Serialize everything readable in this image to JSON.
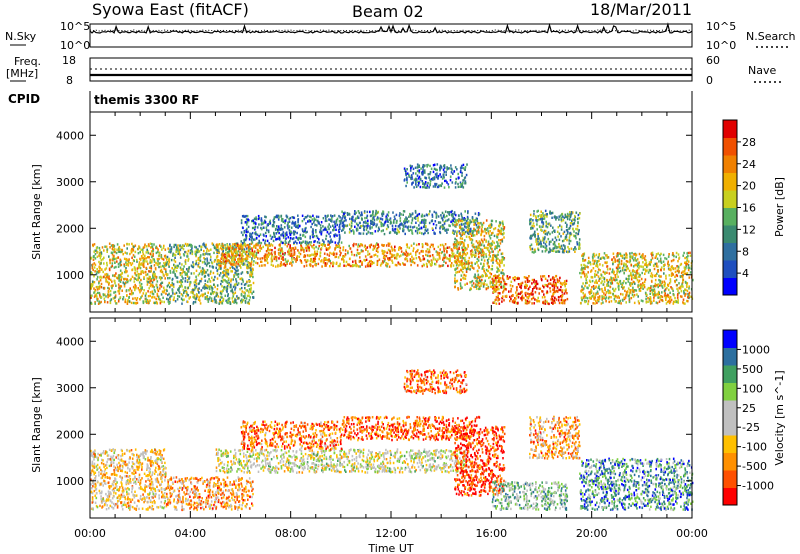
{
  "header": {
    "station": "Syowa East (fitACF)",
    "beam": "Beam 02",
    "date": "18/Mar/2011"
  },
  "noise_panel": {
    "left_label": "N.Sky",
    "right_label": "N.Search",
    "tick_top": "10^5",
    "tick_bottom": "10^0"
  },
  "freq_panel": {
    "left_label_line1": "Freq.",
    "left_label_line2": "[MHz]",
    "right_label": "Nave",
    "left_tick_top": "18",
    "left_tick_bottom": "8",
    "right_tick_top": "60",
    "right_tick_bottom": "0"
  },
  "cpid_panel": {
    "label": "CPID",
    "program": "themis 3300 RF"
  },
  "colors": {
    "power": [
      "#0000ff",
      "#1f4fbf",
      "#2f6fa0",
      "#3a8a70",
      "#58b060",
      "#c8d020",
      "#f0b000",
      "#f08000",
      "#f05000",
      "#e00000"
    ],
    "velocity": [
      "#ff0000",
      "#ff5000",
      "#ff9000",
      "#ffc000",
      "#c0c0c0",
      "#c0c0c0",
      "#80d040",
      "#40a060",
      "#2c6f9f",
      "#0000ff"
    ],
    "ground_scatter": "#bebebe"
  },
  "chart_data": [
    {
      "type": "heatmap",
      "name": "power",
      "xlabel": "",
      "ylabel": "Slant Range [km]",
      "xlim": [
        "00:00",
        "24:00"
      ],
      "ylim": [
        200,
        4500
      ],
      "x_ticks": [
        "00:00",
        "04:00",
        "08:00",
        "12:00",
        "16:00",
        "20:00",
        "00:00"
      ],
      "y_ticks": [
        1000,
        2000,
        3000,
        4000
      ],
      "colorbar": {
        "label": "Power [dB]",
        "ticks": [
          "4",
          "8",
          "12",
          "16",
          "20",
          "24",
          "28"
        ],
        "range": [
          0,
          30
        ]
      },
      "scatter_regions": [
        {
          "t": [
            0.0,
            3.0
          ],
          "r": [
            400,
            1700
          ],
          "level": 0.6
        },
        {
          "t": [
            3.0,
            6.5
          ],
          "r": [
            400,
            1700
          ],
          "level": 0.45
        },
        {
          "t": [
            5.0,
            15.0
          ],
          "r": [
            1200,
            1700
          ],
          "level": 0.7
        },
        {
          "t": [
            6.0,
            10.0
          ],
          "r": [
            1700,
            2300
          ],
          "level": 0.25
        },
        {
          "t": [
            10.0,
            15.5
          ],
          "r": [
            1900,
            2400
          ],
          "level": 0.3
        },
        {
          "t": [
            12.5,
            15.0
          ],
          "r": [
            2900,
            3400
          ],
          "level": 0.25
        },
        {
          "t": [
            14.5,
            16.5
          ],
          "r": [
            700,
            2200
          ],
          "level": 0.6
        },
        {
          "t": [
            16.0,
            19.0
          ],
          "r": [
            400,
            1000
          ],
          "level": 0.8
        },
        {
          "t": [
            17.5,
            19.5
          ],
          "r": [
            1500,
            2400
          ],
          "level": 0.4
        },
        {
          "t": [
            19.5,
            24.0
          ],
          "r": [
            400,
            1500
          ],
          "level": 0.6
        }
      ]
    },
    {
      "type": "heatmap",
      "name": "velocity",
      "xlabel": "Time UT",
      "ylabel": "Slant Range [km]",
      "xlim": [
        "00:00",
        "24:00"
      ],
      "ylim": [
        200,
        4500
      ],
      "x_ticks": [
        "00:00",
        "04:00",
        "08:00",
        "12:00",
        "16:00",
        "20:00",
        "00:00"
      ],
      "y_ticks": [
        1000,
        2000,
        3000,
        4000
      ],
      "colorbar": {
        "label": "Velocity [m s^-1]",
        "ticks": [
          "1000",
          "500",
          "100",
          "25",
          "-25",
          "-100",
          "-500",
          "-1000"
        ]
      },
      "scatter_regions": [
        {
          "t": [
            0.0,
            3.0
          ],
          "r": [
            400,
            1700
          ],
          "level": 0.4
        },
        {
          "t": [
            3.0,
            6.5
          ],
          "r": [
            400,
            1100
          ],
          "level": 0.3
        },
        {
          "t": [
            5.0,
            15.0
          ],
          "r": [
            1200,
            1700
          ],
          "level": 0.5
        },
        {
          "t": [
            6.0,
            10.0
          ],
          "r": [
            1700,
            2300
          ],
          "level": 0.2
        },
        {
          "t": [
            10.0,
            15.5
          ],
          "r": [
            1900,
            2400
          ],
          "level": 0.15
        },
        {
          "t": [
            12.5,
            15.0
          ],
          "r": [
            2900,
            3400
          ],
          "level": 0.2
        },
        {
          "t": [
            14.5,
            16.5
          ],
          "r": [
            700,
            2200
          ],
          "level": 0.1
        },
        {
          "t": [
            16.0,
            19.0
          ],
          "r": [
            400,
            1000
          ],
          "level": 0.65
        },
        {
          "t": [
            17.5,
            19.5
          ],
          "r": [
            1500,
            2400
          ],
          "level": 0.3
        },
        {
          "t": [
            19.5,
            24.0
          ],
          "r": [
            400,
            1500
          ],
          "level": 0.75
        }
      ]
    }
  ]
}
